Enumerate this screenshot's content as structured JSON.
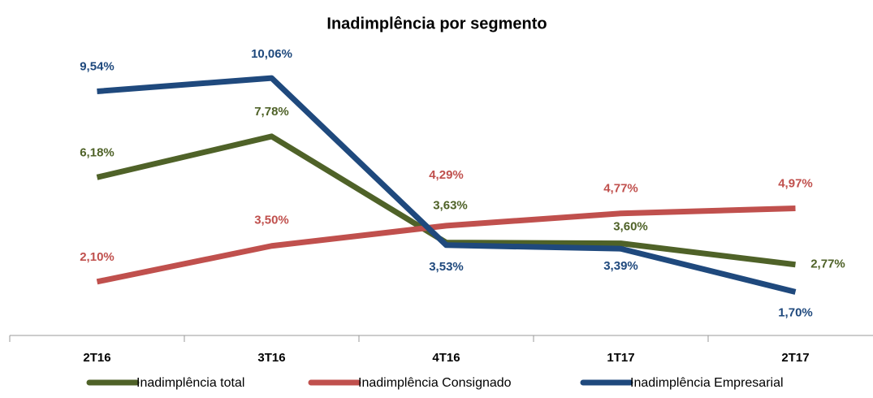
{
  "chart_data": {
    "type": "line",
    "title": "Inadimplência por segmento",
    "categories": [
      "2T16",
      "3T16",
      "4T16",
      "1T17",
      "2T17"
    ],
    "ylim": [
      0,
      12
    ],
    "series": [
      {
        "name": "Inadimplência total",
        "color": "#4f6228",
        "values": [
          6.18,
          7.78,
          3.63,
          3.6,
          2.77
        ],
        "value_labels": [
          "6,18%",
          "7,78%",
          "3,63%",
          "3,60%",
          "2,77%"
        ]
      },
      {
        "name": "Inadimplência Consignado",
        "color": "#c0504d",
        "values": [
          2.1,
          3.5,
          4.29,
          4.77,
          4.97
        ],
        "value_labels": [
          "2,10%",
          "3,50%",
          "4,29%",
          "4,77%",
          "4,97%"
        ]
      },
      {
        "name": "Inadimplência Empresarial",
        "color": "#1f497d",
        "values": [
          9.54,
          10.06,
          3.53,
          3.39,
          1.7
        ],
        "value_labels": [
          "9,54%",
          "10,06%",
          "3,53%",
          "3,39%",
          "1,70%"
        ]
      }
    ]
  }
}
